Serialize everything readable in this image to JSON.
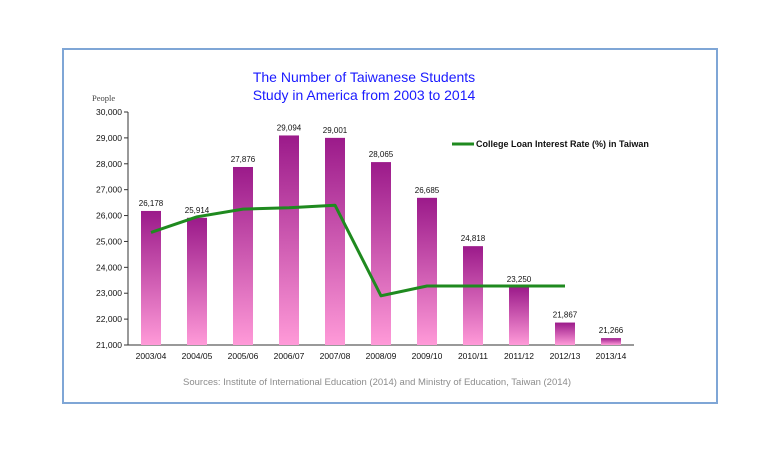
{
  "chart_data": {
    "type": "bar",
    "title": [
      "The Number of Taiwanese Students",
      "Study in America from 2003 to 2014"
    ],
    "ylabel": "People",
    "ylim": [
      21000,
      30000
    ],
    "yticks": [
      21000,
      22000,
      23000,
      24000,
      25000,
      26000,
      27000,
      28000,
      29000,
      30000
    ],
    "ytick_labels": [
      "21,000",
      "22,000",
      "23,000",
      "24,000",
      "25,000",
      "26,000",
      "27,000",
      "28,000",
      "29,000",
      "30,000"
    ],
    "categories": [
      "2003/04",
      "2004/05",
      "2005/06",
      "2006/07",
      "2007/08",
      "2008/09",
      "2009/10",
      "2010/11",
      "2011/12",
      "2012/13",
      "2013/14"
    ],
    "values": [
      26178,
      25914,
      27876,
      29094,
      29001,
      28065,
      26685,
      24818,
      23250,
      21867,
      21266
    ],
    "value_labels": [
      "26,178",
      "25,914",
      "27,876",
      "29,094",
      "29,001",
      "28,065",
      "26,685",
      "24,818",
      "23,250",
      "21,867",
      "21,266"
    ],
    "line_series": {
      "name": "College Loan Interest Rate (%) in Taiwan",
      "color": "#1f8a1f",
      "values_on_people_axis": [
        25350,
        25950,
        26250,
        26300,
        26400,
        22900,
        23280,
        23280,
        23280,
        23280,
        null
      ]
    },
    "bar_color_top": "#9b1a8a",
    "bar_color_bottom": "#ff9ad8",
    "legend_position": "top-right",
    "grid": false,
    "source": "Sources: Institute of International Education (2014) and Ministry of Education, Taiwan (2014)"
  }
}
